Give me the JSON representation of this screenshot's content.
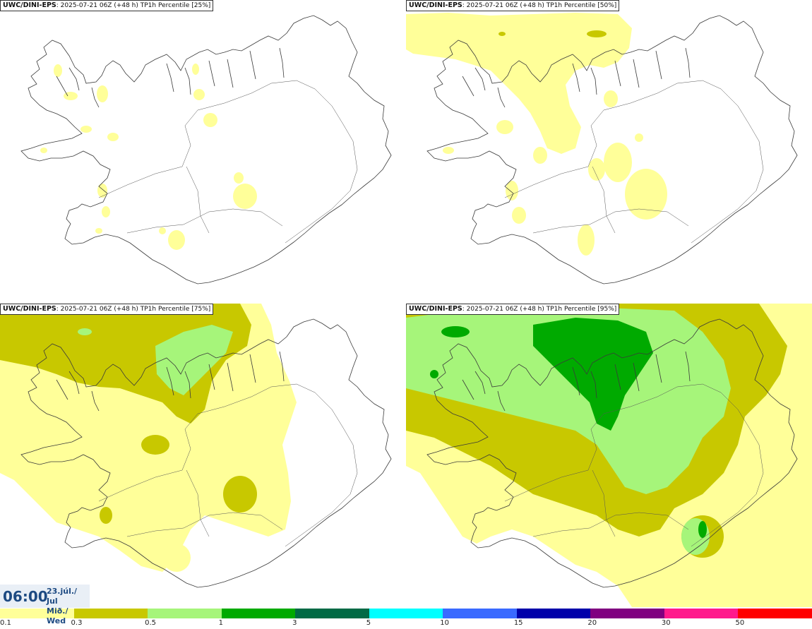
{
  "panels": [
    {
      "model": "UWC/DINI-EPS",
      "info": ": 2025-07-21 06Z (+48 h) TP1h Percentile [25%]",
      "percentile": 25
    },
    {
      "model": "UWC/DINI-EPS",
      "info": ": 2025-07-21 06Z (+48 h) TP1h Percentile [50%]",
      "percentile": 50
    },
    {
      "model": "UWC/DINI-EPS",
      "info": ": 2025-07-21 06Z (+48 h) TP1h Percentile [75%]",
      "percentile": 75
    },
    {
      "model": "UWC/DINI-EPS",
      "info": ": 2025-07-21 06Z (+48 h) TP1h Percentile [95%]",
      "percentile": 95
    }
  ],
  "time": {
    "hour": "06:00",
    "date_line": "23.júl./ Jul",
    "day_line": "Mið./ Wed"
  },
  "legend": {
    "colors": [
      "#ffff99",
      "#c8c800",
      "#a6f57a",
      "#00aa00",
      "#006a45",
      "#00ffff",
      "#3a6aff",
      "#0000aa",
      "#800080",
      "#ff1a8c",
      "#ff0000"
    ],
    "labels": [
      "0.1",
      "0.3",
      "0.5",
      "1",
      "3",
      "5",
      "10",
      "15",
      "20",
      "30",
      "50"
    ]
  }
}
